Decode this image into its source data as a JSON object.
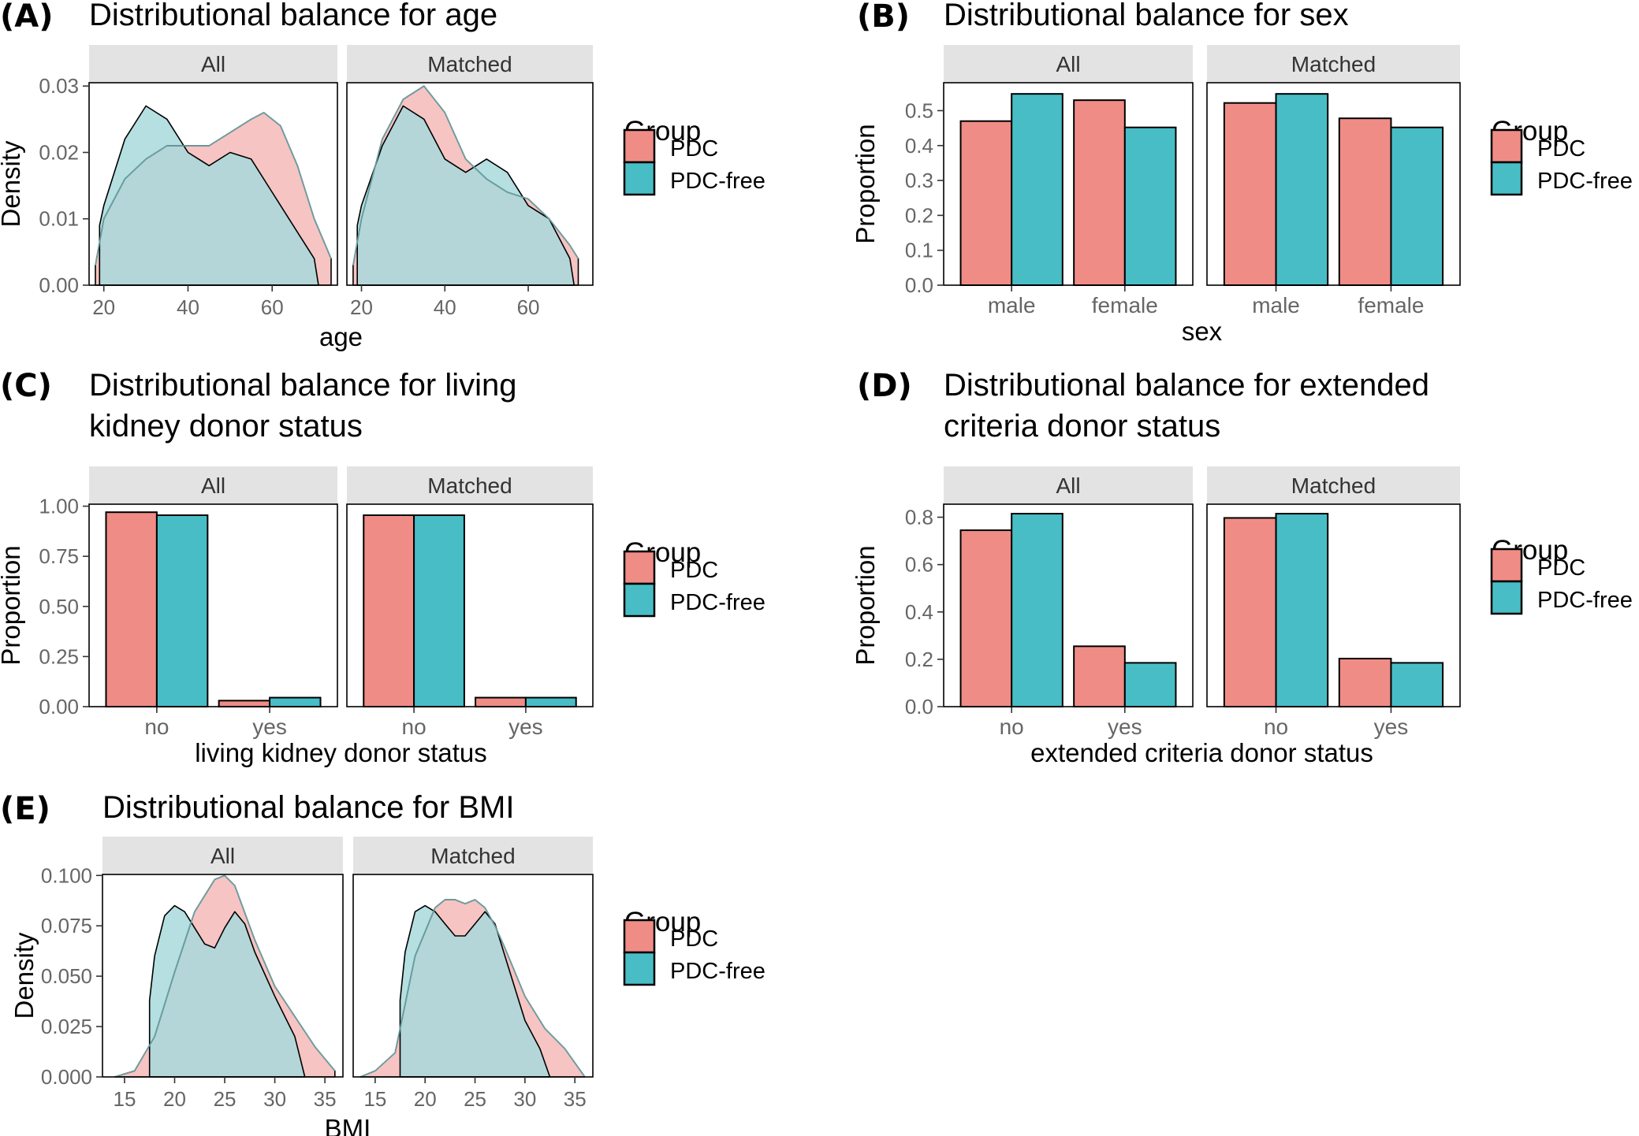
{
  "colors": {
    "pdc": "#f08c86",
    "pdc_free": "#48bdc5",
    "pdc_light": "#f6c4c2",
    "pdc_free_light": "#a8d9dc"
  },
  "legend": {
    "title": "Group",
    "items": [
      "PDC",
      "PDC-free"
    ]
  },
  "chart_data": [
    {
      "id": "A",
      "tag": "(A)",
      "title_lines": [
        "Distributional balance for age"
      ],
      "type": "area",
      "facets": [
        "All",
        "Matched"
      ],
      "xlabel": "age",
      "ylabel": "Density",
      "xlim": [
        16.5,
        75.5
      ],
      "ylim": [
        0,
        0.0305
      ],
      "xticks": [
        20,
        40,
        60
      ],
      "yticks": [
        0.0,
        0.01,
        0.02,
        0.03
      ],
      "ytick_labels": [
        "0.00",
        "0.01",
        "0.02",
        "0.03"
      ],
      "series": [
        {
          "name": "PDC",
          "facet": "All",
          "x": [
            18,
            20,
            25,
            30,
            35,
            40,
            45,
            50,
            55,
            58,
            62,
            66,
            70,
            74
          ],
          "y": [
            0.003,
            0.01,
            0.016,
            0.019,
            0.021,
            0.021,
            0.021,
            0.023,
            0.025,
            0.026,
            0.024,
            0.018,
            0.01,
            0.004
          ]
        },
        {
          "name": "PDC-free",
          "facet": "All",
          "x": [
            19,
            20,
            25,
            30,
            35,
            40,
            45,
            50,
            55,
            60,
            65,
            70,
            71
          ],
          "y": [
            0.009,
            0.012,
            0.022,
            0.027,
            0.025,
            0.02,
            0.018,
            0.02,
            0.019,
            0.014,
            0.009,
            0.004,
            0.0
          ]
        },
        {
          "name": "PDC",
          "facet": "Matched",
          "x": [
            18,
            20,
            25,
            30,
            35,
            40,
            45,
            50,
            55,
            60,
            65,
            70,
            72
          ],
          "y": [
            0.003,
            0.01,
            0.022,
            0.028,
            0.03,
            0.026,
            0.019,
            0.016,
            0.014,
            0.013,
            0.01,
            0.006,
            0.004
          ]
        },
        {
          "name": "PDC-free",
          "facet": "Matched",
          "x": [
            19,
            20,
            25,
            30,
            35,
            40,
            45,
            50,
            55,
            60,
            65,
            70,
            71
          ],
          "y": [
            0.009,
            0.012,
            0.021,
            0.027,
            0.025,
            0.019,
            0.017,
            0.019,
            0.017,
            0.012,
            0.01,
            0.004,
            0.0
          ]
        }
      ]
    },
    {
      "id": "B",
      "tag": "(B)",
      "title_lines": [
        "Distributional balance for sex"
      ],
      "type": "bar",
      "facets": [
        "All",
        "Matched"
      ],
      "xlabel": "sex",
      "ylabel": "Proportion",
      "categories": [
        "male",
        "female"
      ],
      "ylim": [
        0,
        0.58
      ],
      "yticks": [
        0.0,
        0.1,
        0.2,
        0.3,
        0.4,
        0.5
      ],
      "ytick_labels": [
        "0.0",
        "0.1",
        "0.2",
        "0.3",
        "0.4",
        "0.5"
      ],
      "series": [
        {
          "name": "PDC",
          "facet": "All",
          "values": [
            0.47,
            0.53
          ]
        },
        {
          "name": "PDC-free",
          "facet": "All",
          "values": [
            0.548,
            0.452
          ]
        },
        {
          "name": "PDC",
          "facet": "Matched",
          "values": [
            0.522,
            0.478
          ]
        },
        {
          "name": "PDC-free",
          "facet": "Matched",
          "values": [
            0.548,
            0.452
          ]
        }
      ]
    },
    {
      "id": "C",
      "tag": "(C)",
      "title_lines": [
        "Distributional balance for living",
        "kidney donor status"
      ],
      "type": "bar",
      "facets": [
        "All",
        "Matched"
      ],
      "xlabel": "living kidney donor status",
      "ylabel": "Proportion",
      "categories": [
        "no",
        "yes"
      ],
      "ylim": [
        0,
        1.01
      ],
      "yticks": [
        0.0,
        0.25,
        0.5,
        0.75,
        1.0
      ],
      "ytick_labels": [
        "0.00",
        "0.25",
        "0.50",
        "0.75",
        "1.00"
      ],
      "series": [
        {
          "name": "PDC",
          "facet": "All",
          "values": [
            0.97,
            0.03
          ]
        },
        {
          "name": "PDC-free",
          "facet": "All",
          "values": [
            0.955,
            0.045
          ]
        },
        {
          "name": "PDC",
          "facet": "Matched",
          "values": [
            0.955,
            0.045
          ]
        },
        {
          "name": "PDC-free",
          "facet": "Matched",
          "values": [
            0.955,
            0.045
          ]
        }
      ]
    },
    {
      "id": "D",
      "tag": "(D)",
      "title_lines": [
        "Distributional balance for extended",
        "criteria donor status"
      ],
      "type": "bar",
      "facets": [
        "All",
        "Matched"
      ],
      "xlabel": "extended criteria donor status",
      "ylabel": "Proportion",
      "categories": [
        "no",
        "yes"
      ],
      "ylim": [
        0,
        0.855
      ],
      "yticks": [
        0.0,
        0.2,
        0.4,
        0.6,
        0.8
      ],
      "ytick_labels": [
        "0.0",
        "0.2",
        "0.4",
        "0.6",
        "0.8"
      ],
      "series": [
        {
          "name": "PDC",
          "facet": "All",
          "values": [
            0.745,
            0.255
          ]
        },
        {
          "name": "PDC-free",
          "facet": "All",
          "values": [
            0.815,
            0.185
          ]
        },
        {
          "name": "PDC",
          "facet": "Matched",
          "values": [
            0.797,
            0.203
          ]
        },
        {
          "name": "PDC-free",
          "facet": "Matched",
          "values": [
            0.815,
            0.185
          ]
        }
      ]
    },
    {
      "id": "E",
      "tag": "(E)",
      "title_lines": [
        "Distributional balance for BMI"
      ],
      "type": "area",
      "facets": [
        "All",
        "Matched"
      ],
      "xlabel": "BMI",
      "ylabel": "Density",
      "xlim": [
        12.8,
        36.8
      ],
      "ylim": [
        0,
        0.1005
      ],
      "xticks": [
        15,
        20,
        25,
        30,
        35
      ],
      "yticks": [
        0.0,
        0.025,
        0.05,
        0.075,
        0.1
      ],
      "ytick_labels": [
        "0.000",
        "0.025",
        "0.050",
        "0.075",
        "0.100"
      ],
      "series": [
        {
          "name": "PDC",
          "facet": "All",
          "x": [
            14,
            16,
            18,
            20,
            22,
            24,
            25,
            26,
            28,
            30,
            32,
            34,
            36
          ],
          "y": [
            0.0,
            0.003,
            0.02,
            0.052,
            0.082,
            0.098,
            0.1,
            0.095,
            0.068,
            0.045,
            0.03,
            0.015,
            0.003
          ]
        },
        {
          "name": "PDC-free",
          "facet": "All",
          "x": [
            17.5,
            18,
            19,
            20,
            21,
            22,
            23,
            24,
            25,
            26,
            27,
            28,
            30,
            32,
            33
          ],
          "y": [
            0.038,
            0.06,
            0.08,
            0.085,
            0.082,
            0.074,
            0.066,
            0.064,
            0.074,
            0.082,
            0.076,
            0.062,
            0.04,
            0.02,
            0.0
          ]
        },
        {
          "name": "PDC",
          "facet": "Matched",
          "x": [
            13.5,
            15,
            17,
            19,
            21,
            22,
            23,
            24,
            25,
            26,
            27,
            28,
            30,
            32,
            34,
            36
          ],
          "y": [
            0.0,
            0.003,
            0.012,
            0.06,
            0.084,
            0.088,
            0.088,
            0.086,
            0.088,
            0.084,
            0.075,
            0.064,
            0.04,
            0.024,
            0.014,
            0.0
          ]
        },
        {
          "name": "PDC-free",
          "facet": "Matched",
          "x": [
            17.5,
            18,
            19,
            20,
            21,
            22,
            23,
            24,
            25,
            26,
            27,
            28,
            30,
            31.5,
            32.5
          ],
          "y": [
            0.038,
            0.062,
            0.082,
            0.085,
            0.082,
            0.076,
            0.07,
            0.07,
            0.076,
            0.082,
            0.076,
            0.06,
            0.028,
            0.014,
            0.0
          ]
        }
      ]
    }
  ]
}
